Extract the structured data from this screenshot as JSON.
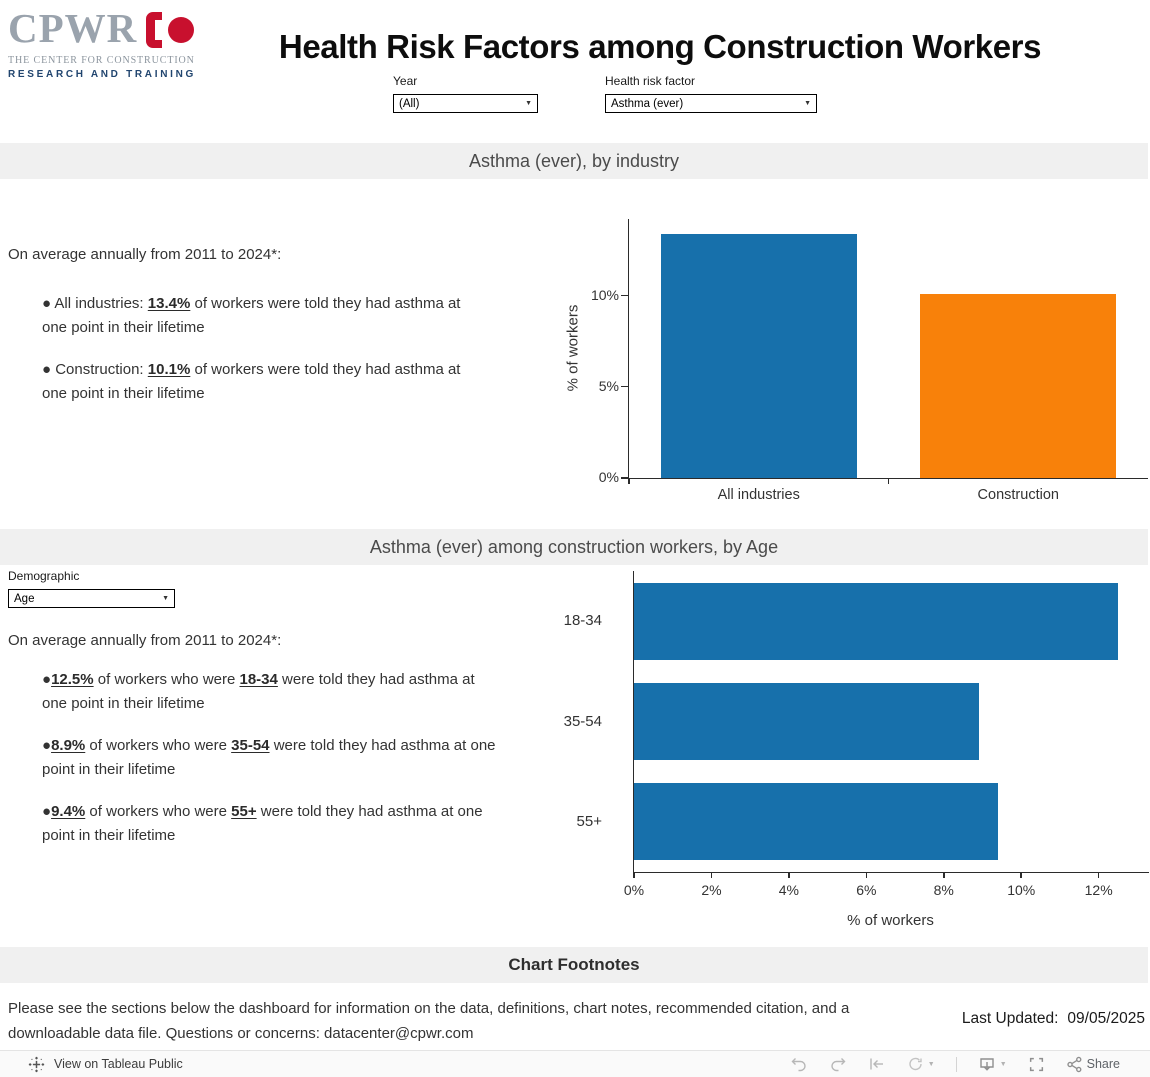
{
  "brand": {
    "name": "CPWR",
    "tagline_line1": "THE CENTER FOR CONSTRUCTION",
    "tagline_line2": "RESEARCH AND TRAINING",
    "colors": {
      "gray": "#9AA3AD",
      "red": "#C8102E",
      "navy": "#21456F"
    }
  },
  "header": {
    "title": "Health Risk Factors among Construction Workers",
    "filters": {
      "year": {
        "label": "Year",
        "value": "(All)"
      },
      "risk": {
        "label": "Health risk factor",
        "value": "Asthma (ever)"
      }
    }
  },
  "section_industry": {
    "banner": "Asthma (ever), by industry",
    "intro": "On average annually from 2011 to 2024*:",
    "bullets": [
      {
        "lead": "● All industries: ",
        "value": "13.4%",
        "rest": " of workers were told they had asthma at one point in their lifetime"
      },
      {
        "lead": "● Construction: ",
        "value": "10.1%",
        "rest": " of workers were told they had asthma at one point in their lifetime"
      }
    ]
  },
  "section_age": {
    "banner": "Asthma (ever) among construction workers, by Age",
    "filter": {
      "label": "Demographic",
      "value": "Age"
    },
    "intro": "On average annually from 2011 to 2024*:",
    "bullets": [
      {
        "lead": "●",
        "value": "12.5%",
        "mid": " of workers who were ",
        "group": "18-34",
        "rest": " were told they had asthma at one point in their lifetime"
      },
      {
        "lead": "●",
        "value": "8.9%",
        "mid": " of workers who were ",
        "group": "35-54",
        "rest": " were told they had asthma at one point in their lifetime"
      },
      {
        "lead": "●",
        "value": "9.4%",
        "mid": " of workers who were ",
        "group": "55+",
        "rest": " were told they had asthma at one point in their lifetime"
      }
    ]
  },
  "footnotes": {
    "banner": "Chart Footnotes",
    "body": "Please see the sections below the dashboard for information on the data, definitions, chart notes, recommended citation, and a downloadable data file.  Questions or concerns: datacenter@cpwr.com",
    "last_updated_label": "Last Updated:",
    "last_updated_value": "09/05/2025"
  },
  "toolbar": {
    "view_label": "View on Tableau Public",
    "share_label": "Share",
    "icons": [
      "tableau-logo",
      "undo",
      "redo",
      "revert",
      "refresh",
      "download",
      "fullscreen",
      "share"
    ]
  },
  "chart_data": [
    {
      "type": "bar",
      "orientation": "vertical",
      "title": "Asthma (ever), by industry",
      "categories": [
        "All industries",
        "Construction"
      ],
      "values": [
        13.4,
        10.1
      ],
      "colors": [
        "#1770AB",
        "#F8810A"
      ],
      "ylabel": "% of workers",
      "ylim": [
        0,
        14.2
      ],
      "yticks": [
        {
          "value": 0,
          "label": "0%"
        },
        {
          "value": 5,
          "label": "5%"
        },
        {
          "value": 10,
          "label": "10%"
        }
      ],
      "grid": false,
      "legend": "none"
    },
    {
      "type": "bar",
      "orientation": "horizontal",
      "title": "Asthma (ever) among construction workers, by Age",
      "categories": [
        "18-34",
        "35-54",
        "55+"
      ],
      "values": [
        12.5,
        8.9,
        9.4
      ],
      "colors": [
        "#1770AB",
        "#1770AB",
        "#1770AB"
      ],
      "xlabel": "% of workers",
      "xlim": [
        0,
        13.3
      ],
      "xticks": [
        {
          "value": 0,
          "label": "0%"
        },
        {
          "value": 2,
          "label": "2%"
        },
        {
          "value": 4,
          "label": "4%"
        },
        {
          "value": 6,
          "label": "6%"
        },
        {
          "value": 8,
          "label": "8%"
        },
        {
          "value": 10,
          "label": "10%"
        },
        {
          "value": 12,
          "label": "12%"
        }
      ],
      "grid": false,
      "legend": "none"
    }
  ]
}
